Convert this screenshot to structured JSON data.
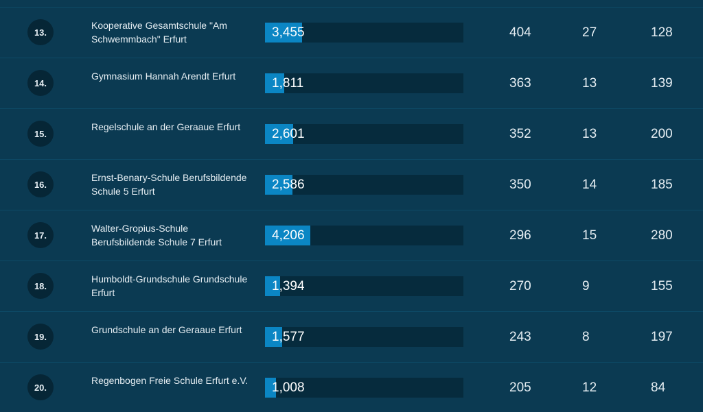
{
  "rows": [
    {
      "rank": "13.",
      "name": "Kooperative Gesamtschule \"Am Schwemmbach\" Erfurt",
      "bar_label": "3,455",
      "bar_value": 3455,
      "col1": "404",
      "col2": "27",
      "col3": "128"
    },
    {
      "rank": "14.",
      "name": "Gymnasium Hannah Arendt Erfurt",
      "bar_label": "1,811",
      "bar_value": 1811,
      "col1": "363",
      "col2": "13",
      "col3": "139"
    },
    {
      "rank": "15.",
      "name": "Regelschule an der Geraaue Erfurt",
      "bar_label": "2,601",
      "bar_value": 2601,
      "col1": "352",
      "col2": "13",
      "col3": "200"
    },
    {
      "rank": "16.",
      "name": "Ernst-Benary-Schule Berufsbildende Schule 5 Erfurt",
      "bar_label": "2,586",
      "bar_value": 2586,
      "col1": "350",
      "col2": "14",
      "col3": "185"
    },
    {
      "rank": "17.",
      "name": "Walter-Gropius-Schule Berufsbildende Schule 7 Erfurt",
      "bar_label": "4,206",
      "bar_value": 4206,
      "col1": "296",
      "col2": "15",
      "col3": "280"
    },
    {
      "rank": "18.",
      "name": "Humboldt-Grundschule Grundschule Erfurt",
      "bar_label": "1,394",
      "bar_value": 1394,
      "col1": "270",
      "col2": "9",
      "col3": "155"
    },
    {
      "rank": "19.",
      "name": "Grundschule an der Geraaue Erfurt",
      "bar_label": "1,577",
      "bar_value": 1577,
      "col1": "243",
      "col2": "8",
      "col3": "197"
    },
    {
      "rank": "20.",
      "name": "Regenbogen Freie Schule Erfurt e.V.",
      "bar_label": "1,008",
      "bar_value": 1008,
      "col1": "205",
      "col2": "12",
      "col3": "84"
    }
  ],
  "colors": {
    "background": "#0b3a52",
    "bar_fill": "#0b86c4",
    "bar_track": "#062b3d",
    "rank_badge": "#062636"
  }
}
